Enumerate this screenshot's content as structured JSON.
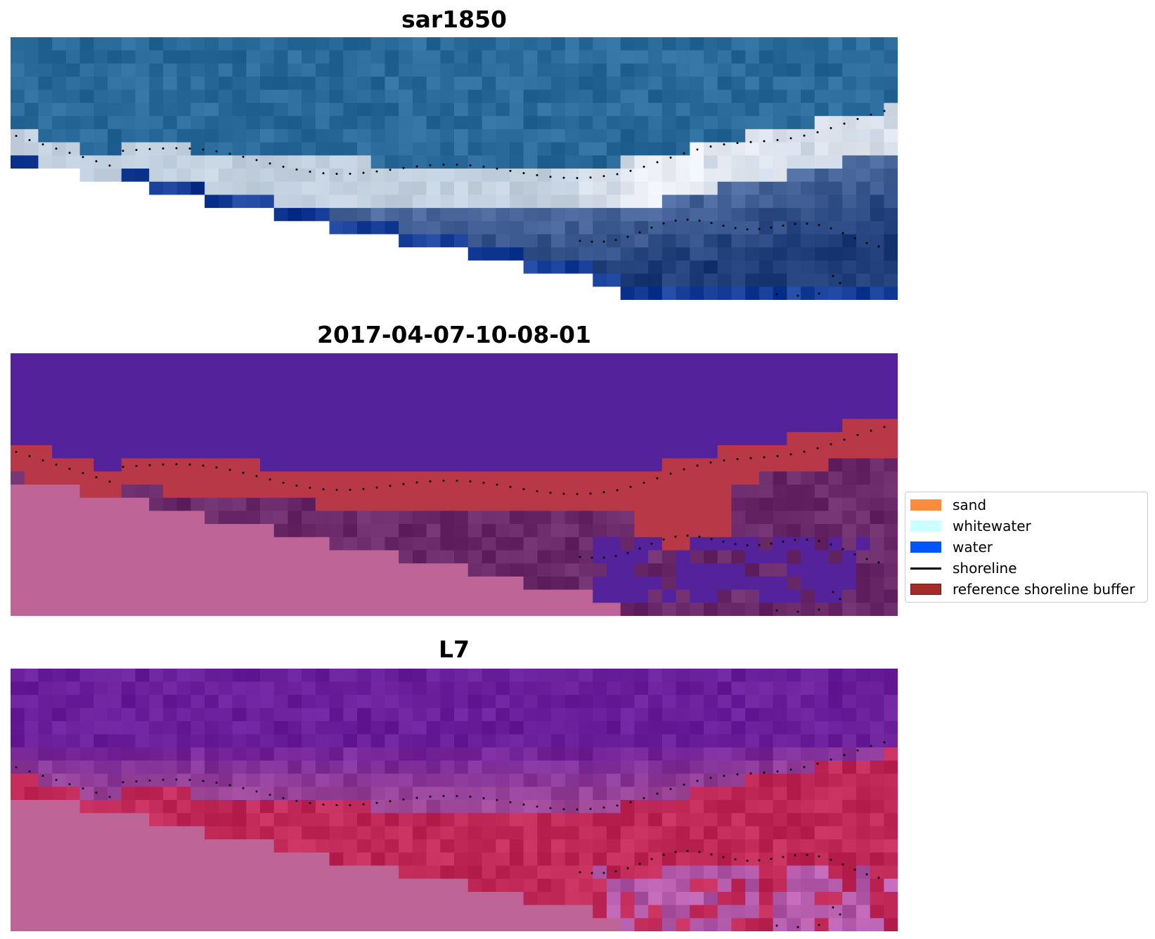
{
  "panels": [
    {
      "title": "sar1850",
      "image": "rgb-composite"
    },
    {
      "title": "2017-04-07-10-08-01",
      "image": "classified-overlay"
    },
    {
      "title": "L7",
      "image": "false-color-composite"
    }
  ],
  "legend": {
    "placement": "center-right",
    "items": [
      {
        "label": "sand",
        "color": "#ff8c3c",
        "kind": "patch"
      },
      {
        "label": "whitewater",
        "color": "#ccffff",
        "kind": "patch"
      },
      {
        "label": "water",
        "color": "#0055ff",
        "kind": "patch"
      },
      {
        "label": "shoreline",
        "color": "#000000",
        "kind": "line"
      },
      {
        "label": "reference shoreline buffer",
        "color": "#a52a2a",
        "kind": "patch"
      }
    ]
  },
  "colors": {
    "panel1_water": "#2a6a9a",
    "panel1_surf": "#b8c8d8",
    "panel2_background": "#54229a",
    "panel2_buffer": "#b83848",
    "panel2_land": "#6a2a6a",
    "panel3_water": "#6a1e9a",
    "panel3_beach": "#c02858",
    "nodata_pink": "#bf6496"
  }
}
